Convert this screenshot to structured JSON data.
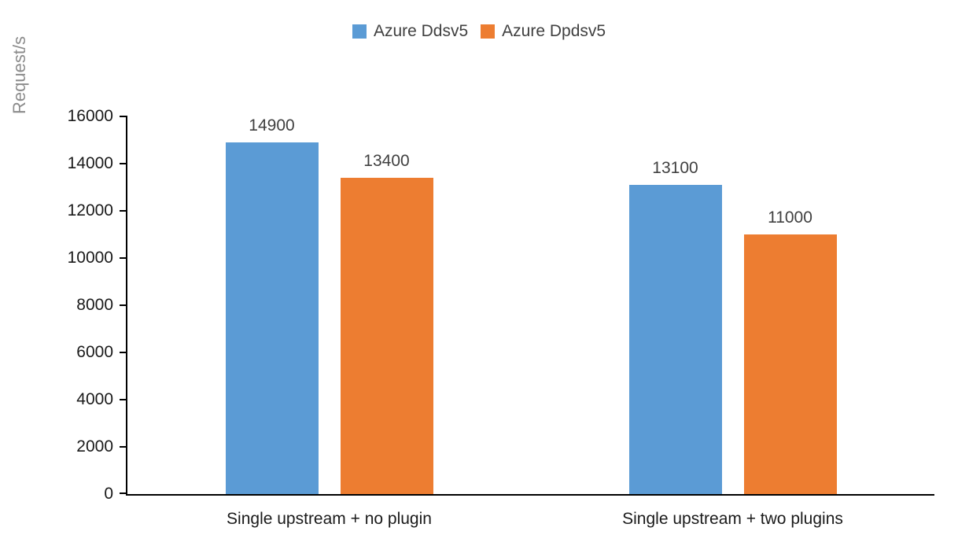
{
  "chart_data": {
    "type": "bar",
    "title": "",
    "xlabel": "",
    "ylabel": "Request/s",
    "categories": [
      "Single upstream + no plugin",
      "Single upstream + two plugins"
    ],
    "series": [
      {
        "name": "Azure Ddsv5",
        "color": "#5B9BD5",
        "values": [
          14900,
          13100
        ]
      },
      {
        "name": "Azure Dpdsv5",
        "color": "#ED7D31",
        "values": [
          13400,
          11000
        ]
      }
    ],
    "data_labels": [
      [
        "14900",
        "13400"
      ],
      [
        "13100",
        "11000"
      ]
    ],
    "ylim": [
      0,
      16000
    ],
    "yticks": [
      0,
      2000,
      4000,
      6000,
      8000,
      10000,
      12000,
      14000,
      16000
    ],
    "grid": false,
    "legend_position": "top",
    "colors": {
      "axis": "#000000",
      "tick_text": "#1a1a1a",
      "data_label_text": "#404040",
      "y_title_text": "#8c8c8c",
      "background": "#ffffff"
    }
  }
}
